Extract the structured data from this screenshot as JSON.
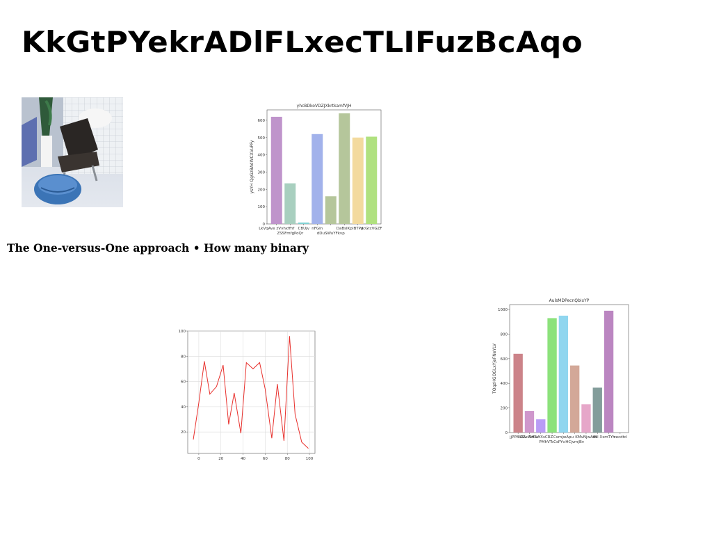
{
  "page": {
    "title": "KkGtPYekrADlFLxecTLIFuzBcAqo",
    "caption": "The One-versus-One approach • How many binary"
  },
  "photo": {
    "icon": "salon-chair-photo"
  },
  "chart_data": [
    {
      "type": "bar",
      "title": "yhcBDkoVDZJXkrtkamfVJH",
      "ylabel": "ysYH QgGzBAdWCXVuPFy",
      "xlabel": "",
      "categories": [
        "LkVqAvx zVvhxffhf",
        "ZSSFmfgPoQr",
        "CBUjv",
        "nFGIn",
        "dDuSWuYFkvp",
        "DaBsIKp",
        "IBTPd",
        "ycGtcVGZF"
      ],
      "category_rows": [
        0,
        1,
        0,
        0,
        1,
        0,
        0,
        0
      ],
      "values": [
        620,
        235,
        8,
        520,
        160,
        640,
        500,
        505
      ],
      "colors": [
        "#bf94cb",
        "#a8cfbf",
        "#7fd1d3",
        "#a2b2eb",
        "#b5c69b",
        "#b5c69b",
        "#f3da9e",
        "#b0e17f"
      ],
      "ylim": [
        0,
        660
      ],
      "yticks": [
        0,
        100,
        200,
        300,
        400,
        500,
        600
      ]
    },
    {
      "type": "line",
      "title": "",
      "xlabel": "",
      "ylabel": "",
      "color": "#e8302c",
      "x": [
        -5,
        0,
        5,
        10,
        16,
        22,
        27,
        32,
        38,
        43,
        49,
        55,
        60,
        66,
        71,
        77,
        82,
        87,
        93,
        99
      ],
      "y": [
        14,
        43,
        76,
        50,
        56,
        73,
        26,
        51,
        19,
        75,
        70,
        75,
        54,
        15,
        58,
        13,
        96,
        34,
        12,
        7
      ],
      "xlim": [
        -10,
        105
      ],
      "ylim": [
        3,
        100
      ],
      "xticks": [
        0,
        20,
        40,
        60,
        80,
        100
      ],
      "yticks": [
        20,
        40,
        60,
        80,
        100
      ],
      "grid": true
    },
    {
      "type": "bar",
      "title": "AulsMDPecnQbIxYP",
      "ylabel": "TOqzHGOGLxYjeFNeYLV",
      "xlabel": "",
      "categories": [
        "jjPPBUSv",
        "GZxWHSv",
        "ScRuYXsCRZ",
        "PMhVTcCsPYv",
        "CxmjwApu",
        "HCjvmjBv",
        "KMvNjwAtB",
        "dxl X",
        "smTYh",
        "vecdtd"
      ],
      "category_rows": [
        0,
        0,
        0,
        1,
        0,
        1,
        0,
        0,
        0,
        0
      ],
      "values": [
        640,
        175,
        108,
        930,
        950,
        545,
        230,
        365,
        990,
        0
      ],
      "colors": [
        "#cc8389",
        "#cf97cc",
        "#b99cf5",
        "#8ce27b",
        "#90d6ef",
        "#d3a898",
        "#e6a7c9",
        "#839d9b",
        "#bb86c1",
        "#ffffff"
      ],
      "ylim": [
        0,
        1040
      ],
      "yticks": [
        0,
        200,
        400,
        600,
        800,
        1000
      ]
    }
  ]
}
